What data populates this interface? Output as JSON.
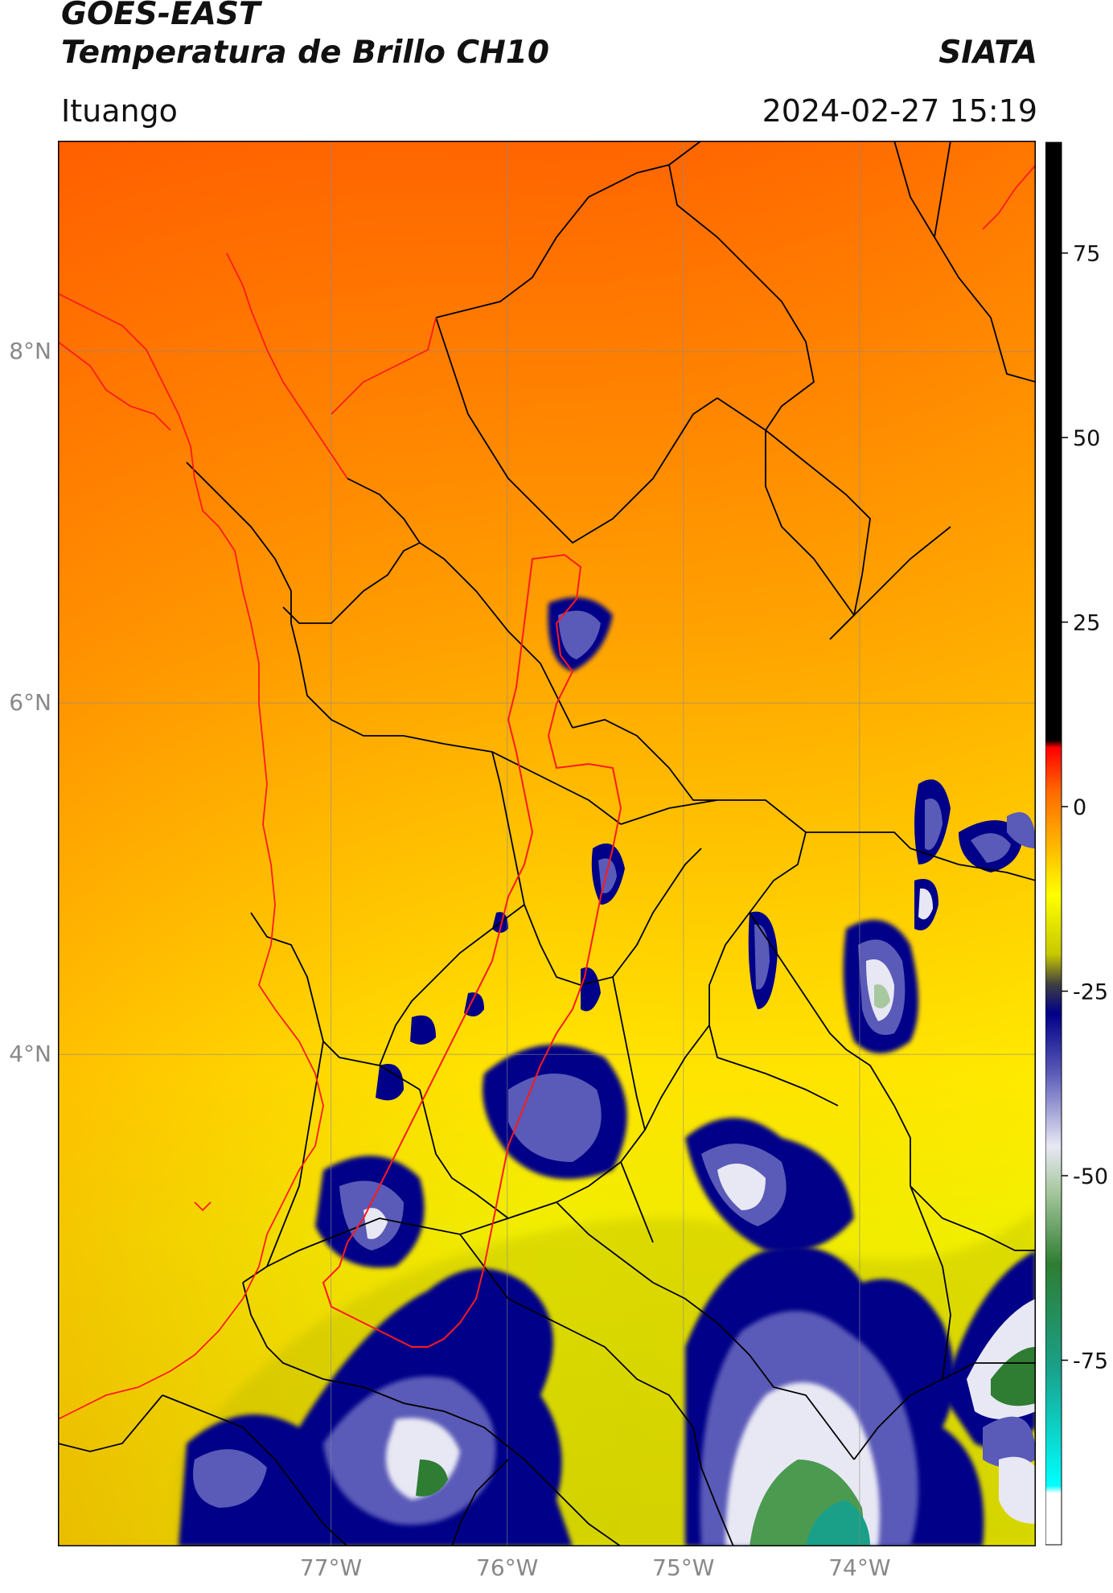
{
  "header": {
    "title_line1": "GOES-EAST",
    "title_line2": "Temperatura de Brillo CH10",
    "brand": "SIATA",
    "location": "Ituango",
    "timestamp": "2024-02-27 15:19"
  },
  "map": {
    "lon_range": [
      -78.55,
      -73.0
    ],
    "lat_range": [
      1.2,
      9.2
    ],
    "lat_ticks": [
      {
        "value": 8,
        "label": "8°N"
      },
      {
        "value": 6,
        "label": "6°N"
      },
      {
        "value": 4,
        "label": "4°N"
      }
    ],
    "lon_ticks": [
      {
        "value": -77,
        "label": "77°W"
      },
      {
        "value": -76,
        "label": "76°W"
      },
      {
        "value": -75,
        "label": "75°W"
      },
      {
        "value": -74,
        "label": "74°W"
      }
    ],
    "border_color": "#000000",
    "highlight_color": "#ff1a1a",
    "grid_color": "#8a8a8a"
  },
  "colorbar": {
    "range": [
      -100,
      90
    ],
    "ticks": [
      {
        "value": 75,
        "label": "75"
      },
      {
        "value": 50,
        "label": "50"
      },
      {
        "value": 25,
        "label": "25"
      },
      {
        "value": 0,
        "label": "0"
      },
      {
        "value": -25,
        "label": "-25"
      },
      {
        "value": -50,
        "label": "-50"
      },
      {
        "value": -75,
        "label": "-75"
      }
    ],
    "stops": [
      {
        "value": 90,
        "color": "#000000"
      },
      {
        "value": 9,
        "color": "#000000"
      },
      {
        "value": 8,
        "color": "#ff0000"
      },
      {
        "value": 2,
        "color": "#ff6a00"
      },
      {
        "value": -5,
        "color": "#ffb400"
      },
      {
        "value": -12,
        "color": "#ffff00"
      },
      {
        "value": -20,
        "color": "#c8c800"
      },
      {
        "value": -24,
        "color": "#404040"
      },
      {
        "value": -28,
        "color": "#000088"
      },
      {
        "value": -36,
        "color": "#5a5ab8"
      },
      {
        "value": -46,
        "color": "#e8e8f4"
      },
      {
        "value": -52,
        "color": "#a8c8a0"
      },
      {
        "value": -62,
        "color": "#2e7d32"
      },
      {
        "value": -76,
        "color": "#1aa089"
      },
      {
        "value": -92,
        "color": "#00ffff"
      },
      {
        "value": -93,
        "color": "#ffffff"
      },
      {
        "value": -100,
        "color": "#ffffff"
      }
    ]
  }
}
